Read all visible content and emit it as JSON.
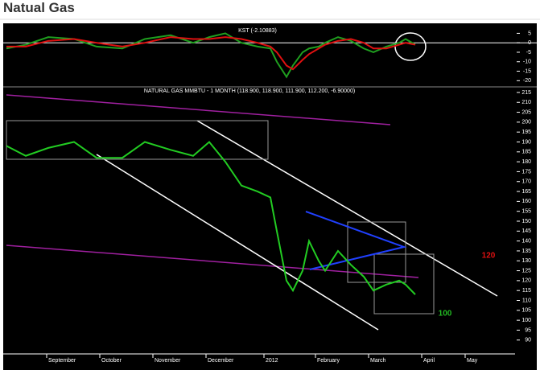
{
  "header": {
    "title": "Natual Gas"
  },
  "chart_data": [
    {
      "type": "line",
      "title": "KST (-2.10883)",
      "x": [
        0,
        6,
        13,
        21,
        28,
        36,
        43,
        51,
        58,
        63,
        68,
        73,
        78,
        82,
        84,
        87,
        89,
        92,
        94,
        97,
        99,
        103,
        107,
        111,
        114,
        118,
        122,
        124,
        127
      ],
      "series": [
        {
          "color": "#1f9f1f",
          "values": [
            -3,
            -1,
            3,
            2,
            -2,
            -3,
            2,
            4,
            0,
            3,
            5,
            0,
            -2,
            -3,
            -10,
            -18,
            -12,
            -5,
            -3,
            -2,
            0,
            3,
            1,
            -3,
            -5,
            -2,
            0,
            2,
            -1
          ]
        },
        {
          "color": "#e01010",
          "values": [
            -2,
            -2,
            1,
            2,
            0,
            -2,
            0,
            3,
            2,
            2,
            3,
            2,
            0,
            -2,
            -5,
            -12,
            -14,
            -9,
            -6,
            -3,
            -1,
            1,
            2,
            0,
            -3,
            -3,
            -1,
            0,
            -1
          ]
        }
      ],
      "xlim": [
        0,
        158
      ],
      "ylim": [
        -22,
        9
      ],
      "yticks": [
        5,
        0,
        -5,
        -10,
        -15,
        -20
      ],
      "zero_line": true
    },
    {
      "type": "line",
      "title": "NATURAL GAS MMBTU - 1 MONTH (118.900, 118.900, 111.900, 112.200, -6.90000)",
      "x": [
        0,
        6,
        13,
        21,
        28,
        36,
        43,
        51,
        58,
        63,
        68,
        73,
        78,
        82,
        84,
        87,
        89,
        92,
        94,
        97,
        99,
        103,
        107,
        111,
        114,
        118,
        122,
        124,
        127
      ],
      "series": [
        {
          "color": "#22cc22",
          "values": [
            188,
            183,
            187,
            190,
            182,
            182,
            190,
            186,
            183,
            190,
            180,
            168,
            165,
            162,
            145,
            120,
            115,
            125,
            140,
            130,
            125,
            135,
            128,
            122,
            115,
            118,
            120,
            118,
            113
          ]
        }
      ],
      "xlim": [
        0,
        158
      ],
      "ylim": [
        83,
        217
      ],
      "yticks": [
        215,
        210,
        205,
        200,
        195,
        190,
        185,
        180,
        175,
        170,
        165,
        160,
        155,
        150,
        145,
        140,
        135,
        130,
        125,
        120,
        115,
        110,
        105,
        100,
        95,
        90
      ],
      "xticks": [
        {
          "value": 12.5,
          "label": "September"
        },
        {
          "value": 29,
          "label": "October"
        },
        {
          "value": 45.5,
          "label": "November"
        },
        {
          "value": 62,
          "label": "December"
        },
        {
          "value": 80,
          "label": "2012"
        },
        {
          "value": 96,
          "label": "February"
        },
        {
          "value": 112.5,
          "label": "March"
        },
        {
          "value": 129,
          "label": "April"
        },
        {
          "value": 142.5,
          "label": "May"
        }
      ],
      "annotations": [
        {
          "text": "120",
          "color": "#e01010"
        },
        {
          "text": "100",
          "color": "#22bb22"
        }
      ]
    }
  ]
}
